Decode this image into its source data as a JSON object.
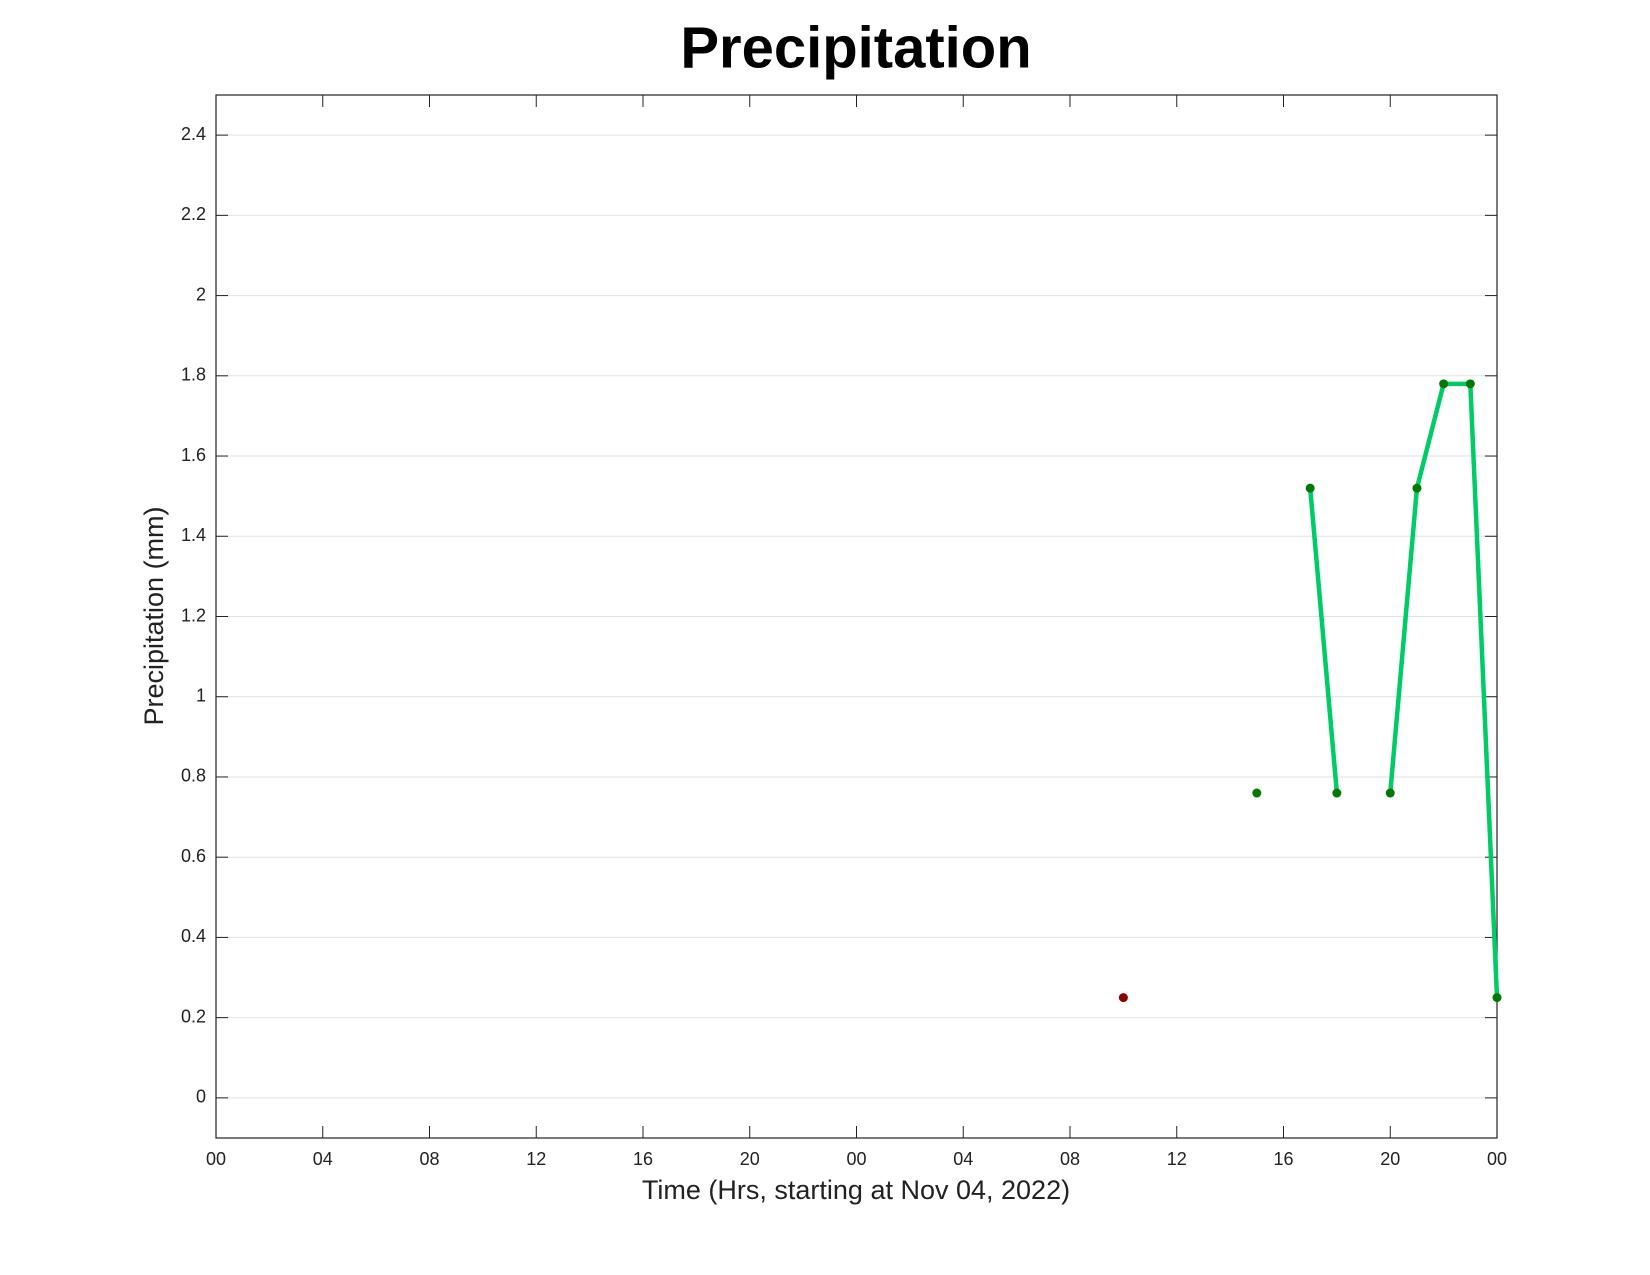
{
  "chart_data": {
    "type": "line",
    "title": "Precipitation",
    "x_label": "Time (Hrs, starting at Nov 04, 2022)",
    "y_label": "Precipitation (mm)",
    "xlim": [
      0,
      48
    ],
    "ylim": [
      -0.1,
      2.5
    ],
    "xticks": [
      {
        "value": 0,
        "label": "00"
      },
      {
        "value": 4,
        "label": "04"
      },
      {
        "value": 8,
        "label": "08"
      },
      12,
      16,
      20,
      {
        "value": 24,
        "label": "00"
      },
      {
        "value": 28,
        "label": "04"
      },
      {
        "value": 32,
        "label": "08"
      },
      {
        "value": 36,
        "label": "12"
      },
      {
        "value": 40,
        "label": "16"
      },
      {
        "value": 44,
        "label": "20"
      },
      {
        "value": 48,
        "label": "00"
      }
    ],
    "yticks": [
      0,
      0.2,
      0.4,
      0.6,
      0.8,
      1,
      1.2,
      1.4,
      1.6,
      1.8,
      2,
      2.2,
      2.4
    ],
    "grid": true,
    "series": [
      {
        "color": "#00cc66",
        "marker_color": "#8b0000",
        "x": [
          34
        ],
        "values": [
          0.25
        ]
      },
      {
        "color": "#00cc66",
        "marker_color": "#007a00",
        "x": [
          39,
          40,
          41,
          42,
          43,
          44,
          45,
          46,
          47,
          48
        ],
        "values": [
          0.76,
          null,
          1.52,
          0.76,
          null,
          0.76,
          1.52,
          1.78,
          1.78,
          0.25
        ]
      }
    ]
  }
}
